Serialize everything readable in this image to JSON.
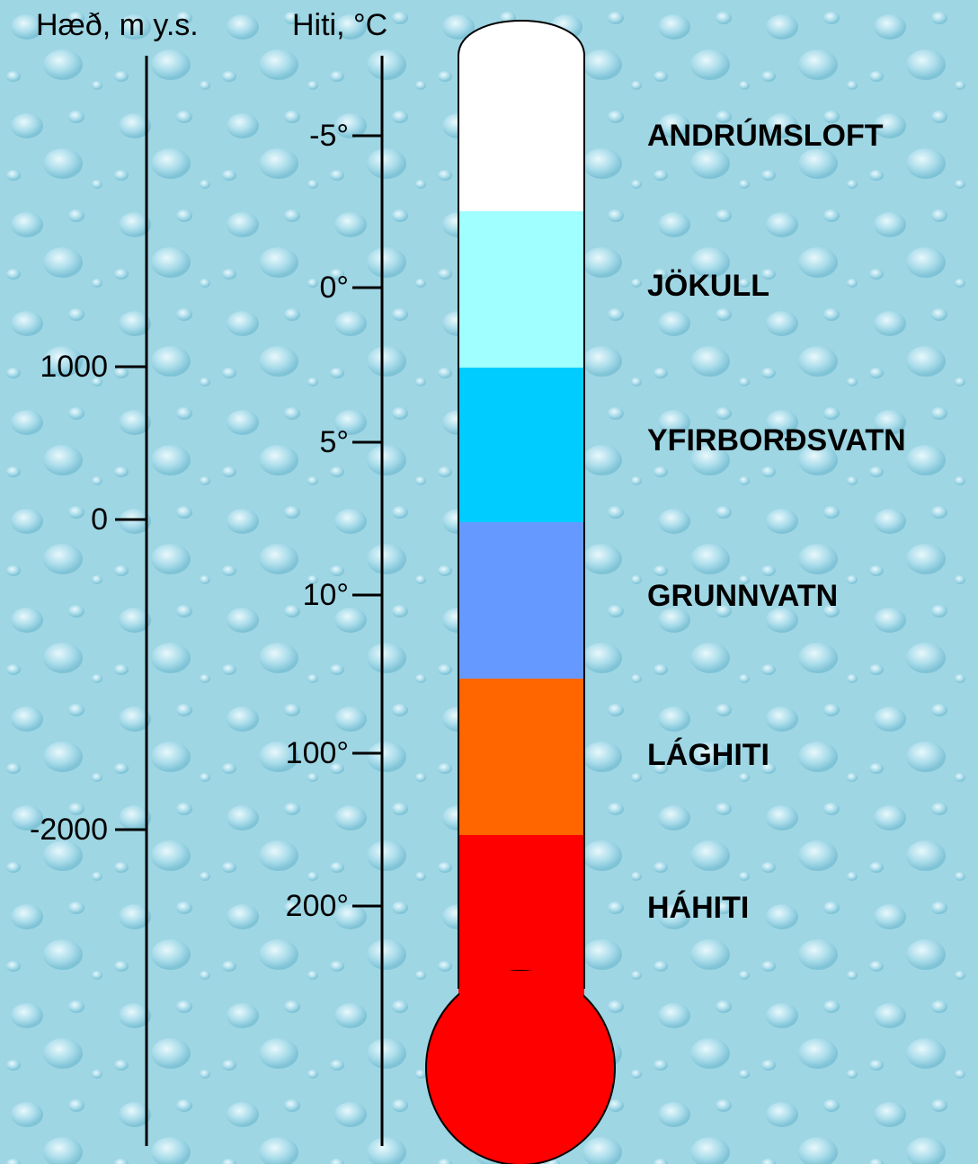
{
  "axes": {
    "left": {
      "title": "Hæð, m y.s.",
      "ticks": [
        "1000",
        "0",
        "-2000"
      ]
    },
    "right": {
      "title": "Hiti, °C",
      "ticks": [
        "-5°",
        "0°",
        "5°",
        "10°",
        "100°",
        "200°"
      ]
    }
  },
  "zones": [
    {
      "label": "ANDRÚMSLOFT",
      "color": "#ffffff"
    },
    {
      "label": "JÖKULL",
      "color": "#a0ffff"
    },
    {
      "label": "YFIRBORÐSVATN",
      "color": "#00ccff"
    },
    {
      "label": "GRUNNVATN",
      "color": "#6699ff"
    },
    {
      "label": "LÁGHITI",
      "color": "#ff6600"
    },
    {
      "label": "HÁHITI",
      "color": "#ff0000"
    }
  ]
}
